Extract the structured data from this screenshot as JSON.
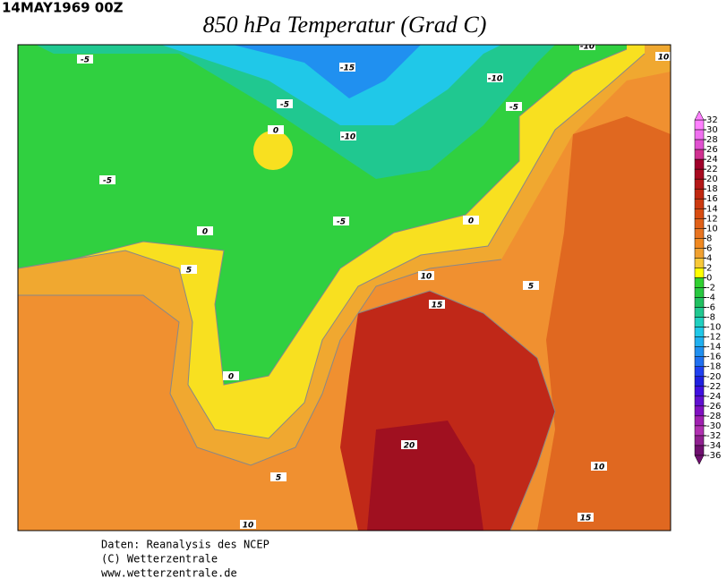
{
  "header": {
    "date": "14MAY1969 00Z",
    "title": "850 hPa Temperatur (Grad C)"
  },
  "contour_labels": [
    -5,
    -15,
    -10,
    -10,
    10,
    -5,
    -5,
    0,
    -10,
    -5,
    0,
    -5,
    0,
    5,
    5,
    10,
    15,
    0,
    20,
    10,
    5,
    15,
    10
  ],
  "colorbar": {
    "ticks": [
      32,
      30,
      28,
      26,
      24,
      22,
      20,
      18,
      16,
      14,
      12,
      10,
      8,
      6,
      4,
      2,
      0,
      -2,
      -4,
      -6,
      -8,
      -10,
      -12,
      -14,
      -16,
      -18,
      -20,
      -22,
      -24,
      -26,
      -28,
      -30,
      -32,
      -34,
      -36
    ],
    "colors": [
      "#ff80ff",
      "#f070f0",
      "#e050d0",
      "#d03090",
      "#a0002a",
      "#a80a20",
      "#b41818",
      "#c02810",
      "#cc3a10",
      "#d84c10",
      "#e06018",
      "#e87420",
      "#f08820",
      "#f0a030",
      "#f8c838",
      "#ffff00",
      "#30d030",
      "#28c840",
      "#20c060",
      "#20c890",
      "#20d0c0",
      "#20c8e8",
      "#20b0f0",
      "#2090f0",
      "#2070f0",
      "#2040f0",
      "#2020e0",
      "#4010e0",
      "#6010d0",
      "#8010c0",
      "#a020b0",
      "#b030b0",
      "#902090",
      "#701070"
    ]
  },
  "credits": [
    "Daten: Reanalysis des NCEP",
    "(C) Wetterzentrale",
    "www.wetterzentrale.de"
  ]
}
